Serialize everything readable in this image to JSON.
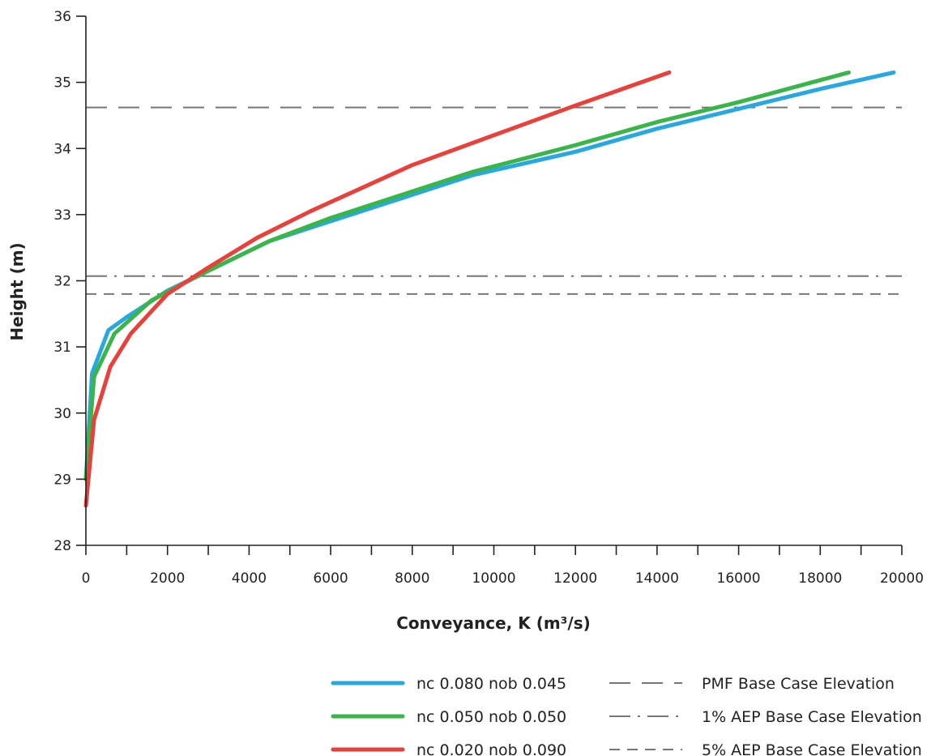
{
  "chart_data": {
    "type": "line",
    "title": "",
    "xlabel": "Conveyance, K (m³/s)",
    "ylabel": "Height (m)",
    "xlim": [
      0,
      20000
    ],
    "ylim": [
      28,
      36
    ],
    "x_ticks": [
      "0",
      "2000",
      "4000",
      "6000",
      "8000",
      "10000",
      "12000",
      "14000",
      "16000",
      "18000",
      "20000"
    ],
    "y_ticks": [
      "28",
      "29",
      "30",
      "31",
      "32",
      "33",
      "34",
      "35",
      "36"
    ],
    "grid": false,
    "legend_position": "bottom-right",
    "series": [
      {
        "name": "nc 0.080 nob 0.045",
        "color": "#29a8e0",
        "points": [
          [
            0,
            29.0
          ],
          [
            150,
            30.6
          ],
          [
            550,
            31.25
          ],
          [
            1000,
            31.45
          ],
          [
            1500,
            31.65
          ],
          [
            2000,
            31.85
          ],
          [
            3000,
            32.15
          ],
          [
            4500,
            32.6
          ],
          [
            6000,
            32.9
          ],
          [
            8000,
            33.3
          ],
          [
            9500,
            33.6
          ],
          [
            12000,
            33.95
          ],
          [
            14000,
            34.3
          ],
          [
            16000,
            34.6
          ],
          [
            18000,
            34.9
          ],
          [
            19800,
            35.15
          ]
        ]
      },
      {
        "name": "nc 0.050 nob 0.050",
        "color": "#3ab54a",
        "points": [
          [
            0,
            29.0
          ],
          [
            200,
            30.55
          ],
          [
            700,
            31.2
          ],
          [
            1600,
            31.7
          ],
          [
            2200,
            31.9
          ],
          [
            3000,
            32.15
          ],
          [
            4500,
            32.6
          ],
          [
            6000,
            32.95
          ],
          [
            8000,
            33.35
          ],
          [
            9500,
            33.65
          ],
          [
            12000,
            34.05
          ],
          [
            14000,
            34.4
          ],
          [
            16000,
            34.7
          ],
          [
            18700,
            35.15
          ]
        ]
      },
      {
        "name": "nc 0.020 nob 0.090",
        "color": "#e8413c",
        "points": [
          [
            0,
            28.6
          ],
          [
            200,
            29.9
          ],
          [
            600,
            30.7
          ],
          [
            1100,
            31.2
          ],
          [
            2000,
            31.8
          ],
          [
            3000,
            32.2
          ],
          [
            4200,
            32.65
          ],
          [
            5500,
            33.05
          ],
          [
            8000,
            33.75
          ],
          [
            10000,
            34.2
          ],
          [
            12000,
            34.65
          ],
          [
            14300,
            35.15
          ]
        ]
      }
    ],
    "reference_lines": [
      {
        "name": "PMF Base Case Elevation",
        "y": 34.62,
        "color": "#777777",
        "dash": "long-dash"
      },
      {
        "name": "1% AEP Base Case Elevation",
        "y": 32.07,
        "color": "#777777",
        "dash": "dash-dot"
      },
      {
        "name": "5% AEP Base Case Elevation",
        "y": 31.8,
        "color": "#777777",
        "dash": "short-dash"
      }
    ]
  }
}
